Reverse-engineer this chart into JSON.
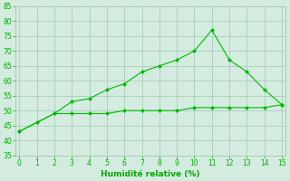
{
  "line1_x": [
    0,
    1,
    2,
    3,
    4,
    5,
    6,
    7,
    8,
    9,
    10,
    11,
    12,
    13,
    14,
    15
  ],
  "line1_y": [
    43,
    46,
    49,
    53,
    54,
    57,
    59,
    63,
    65,
    67,
    70,
    77,
    67,
    63,
    57,
    52
  ],
  "line2_x": [
    0,
    2,
    3,
    4,
    5,
    6,
    7,
    8,
    9,
    10,
    11,
    12,
    13,
    14,
    15
  ],
  "line2_y": [
    43,
    49,
    49,
    49,
    49,
    50,
    50,
    50,
    50,
    51,
    51,
    51,
    51,
    51,
    52
  ],
  "line_color": "#00bb00",
  "marker": "D",
  "marker_size": 2.0,
  "bg_color": "#d4ece0",
  "grid_color": "#aaccbb",
  "xlabel": "Humidité relative (%)",
  "xlabel_color": "#00aa00",
  "tick_color": "#00aa00",
  "spine_color": "#aaccbb",
  "xlim": [
    -0.2,
    15.2
  ],
  "ylim": [
    35,
    85
  ],
  "xticks": [
    0,
    1,
    2,
    3,
    4,
    5,
    6,
    7,
    8,
    9,
    10,
    11,
    12,
    13,
    14,
    15
  ],
  "yticks": [
    35,
    40,
    45,
    50,
    55,
    60,
    65,
    70,
    75,
    80,
    85
  ]
}
